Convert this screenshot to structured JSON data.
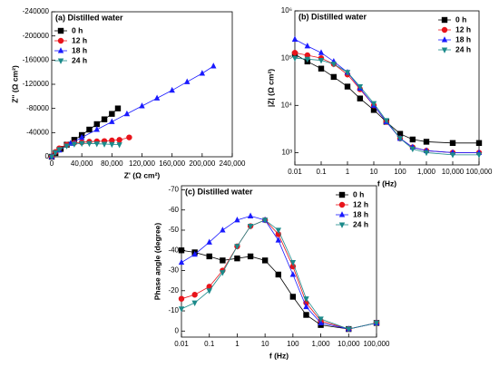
{
  "chart_data": [
    {
      "type": "line",
      "title": "(a) Distilled water",
      "x_label": "Z' (Ω cm²)",
      "y_label": "Z'' (Ω cm²)",
      "xlim": [
        0,
        240000
      ],
      "ylim": [
        0,
        -240000
      ],
      "xlog": false,
      "ylog": false,
      "legend": "upper left",
      "xticks": [
        0,
        {
          "value": 40000,
          "label": "40,000"
        },
        {
          "value": 80000,
          "label": "80,000"
        },
        {
          "value": 120000,
          "label": "120,000"
        },
        {
          "value": 160000,
          "label": "160,000"
        },
        {
          "value": 200000,
          "label": "200,000"
        },
        {
          "value": 240000,
          "label": "240,000"
        }
      ],
      "yticks": [
        0,
        -40000,
        -80000,
        -120000,
        -160000,
        -200000,
        -240000
      ],
      "series": [
        {
          "name": "0 h",
          "color": "#000000",
          "marker": "square",
          "x": [
            0,
            5000,
            12000,
            20000,
            30000,
            40000,
            50000,
            60000,
            70000,
            80000,
            88000
          ],
          "values": [
            0,
            -6000,
            -13000,
            -20000,
            -28000,
            -36000,
            -45000,
            -54000,
            -62000,
            -71000,
            -80000
          ]
        },
        {
          "name": "12 h",
          "color": "#e8141b",
          "marker": "circle",
          "x": [
            0,
            5000,
            10000,
            20000,
            30000,
            40000,
            50000,
            60000,
            70000,
            80000,
            90000,
            103000
          ],
          "values": [
            0,
            -8000,
            -14000,
            -20000,
            -23000,
            -24000,
            -25000,
            -25500,
            -26000,
            -27000,
            -28000,
            -32000
          ]
        },
        {
          "name": "18 h",
          "color": "#1a1aff",
          "marker": "triangle",
          "x": [
            0,
            10000,
            25000,
            40000,
            60000,
            80000,
            100000,
            120000,
            140000,
            160000,
            180000,
            200000,
            215000
          ],
          "values": [
            0,
            -11000,
            -22000,
            -32000,
            -45000,
            -58000,
            -71000,
            -84000,
            -97000,
            -110000,
            -124000,
            -138000,
            -150000
          ]
        },
        {
          "name": "24 h",
          "color": "#1b8a8a",
          "marker": "triangle-down",
          "x": [
            0,
            5000,
            10000,
            20000,
            30000,
            40000,
            50000,
            60000,
            70000,
            80000,
            90000
          ],
          "values": [
            0,
            -7000,
            -12000,
            -18000,
            -21000,
            -22000,
            -22000,
            -21500,
            -21000,
            -20500,
            -20000
          ]
        }
      ]
    },
    {
      "type": "line",
      "title": "(b) Distilled water",
      "x_label": "f (Hz)",
      "y_label": "|Z| (Ω cm²)",
      "xlim": [
        0.01,
        100000
      ],
      "ylim": [
        550,
        1000000
      ],
      "xlog": true,
      "ylog": true,
      "legend": "upper right",
      "xticks": [
        0.01,
        0.1,
        1,
        10,
        100,
        {
          "value": 1000,
          "label": "1,000"
        },
        {
          "value": 10000,
          "label": "10,000"
        },
        {
          "value": 100000,
          "label": "100,000"
        }
      ],
      "yticks": [
        {
          "value": 1000,
          "label": "10³"
        },
        {
          "value": 10000,
          "label": "10⁴"
        },
        {
          "value": 100000,
          "label": "10⁵"
        },
        {
          "value": 1000000,
          "label": "10⁶"
        }
      ],
      "x": [
        0.01,
        0.03,
        0.1,
        0.3,
        1,
        3,
        10,
        30,
        100,
        300,
        1000,
        10000,
        100000
      ],
      "series": [
        {
          "name": "0 h",
          "color": "#000000",
          "marker": "square",
          "values": [
            120000,
            85000,
            60000,
            40000,
            25000,
            14000,
            8000,
            4500,
            2500,
            1900,
            1700,
            1600,
            1600
          ]
        },
        {
          "name": "12 h",
          "color": "#e8141b",
          "marker": "circle",
          "values": [
            130000,
            115000,
            100000,
            75000,
            45000,
            22000,
            10000,
            4500,
            2000,
            1300,
            1100,
            1000,
            1000
          ]
        },
        {
          "name": "18 h",
          "color": "#1a1aff",
          "marker": "triangle",
          "values": [
            250000,
            180000,
            130000,
            85000,
            50000,
            23000,
            10000,
            4500,
            2000,
            1300,
            1100,
            1000,
            1000
          ]
        },
        {
          "name": "24 h",
          "color": "#1b8a8a",
          "marker": "triangle-down",
          "values": [
            100000,
            95000,
            90000,
            75000,
            50000,
            25000,
            11000,
            4800,
            2000,
            1200,
            1000,
            900,
            900
          ]
        }
      ]
    },
    {
      "type": "line",
      "title": "(c) Distilled water",
      "x_label": "f (Hz)",
      "y_label": "Phase angle (degree)",
      "xlim": [
        0.01,
        100000
      ],
      "ylim": [
        3,
        -72
      ],
      "xlog": true,
      "ylog": false,
      "legend": "upper right",
      "xticks": [
        0.01,
        0.1,
        1,
        10,
        100,
        {
          "value": 1000,
          "label": "1,000"
        },
        {
          "value": 10000,
          "label": "10,000"
        },
        {
          "value": 100000,
          "label": "100,000"
        }
      ],
      "yticks": [
        0,
        -10,
        -20,
        -30,
        -40,
        -50,
        -60,
        -70
      ],
      "x": [
        0.01,
        0.03,
        0.1,
        0.3,
        1,
        3,
        10,
        30,
        100,
        300,
        1000,
        10000,
        100000
      ],
      "series": [
        {
          "name": "0 h",
          "color": "#000000",
          "marker": "square",
          "values": [
            -40,
            -39,
            -37,
            -35,
            -36,
            -37,
            -35,
            -28,
            -17,
            -8,
            -3,
            -1,
            -4
          ]
        },
        {
          "name": "12 h",
          "color": "#e8141b",
          "marker": "circle",
          "values": [
            -16,
            -18,
            -22,
            -30,
            -42,
            -52,
            -55,
            -48,
            -32,
            -14,
            -5,
            -1,
            -4
          ]
        },
        {
          "name": "18 h",
          "color": "#1a1aff",
          "marker": "triangle",
          "values": [
            -34,
            -38,
            -44,
            -50,
            -55,
            -57,
            -55,
            -45,
            -28,
            -12,
            -4,
            -1,
            -4
          ]
        },
        {
          "name": "24 h",
          "color": "#1b8a8a",
          "marker": "triangle-down",
          "values": [
            -11,
            -14,
            -20,
            -29,
            -42,
            -52,
            -55,
            -50,
            -34,
            -16,
            -6,
            -1,
            -4
          ]
        }
      ]
    }
  ]
}
